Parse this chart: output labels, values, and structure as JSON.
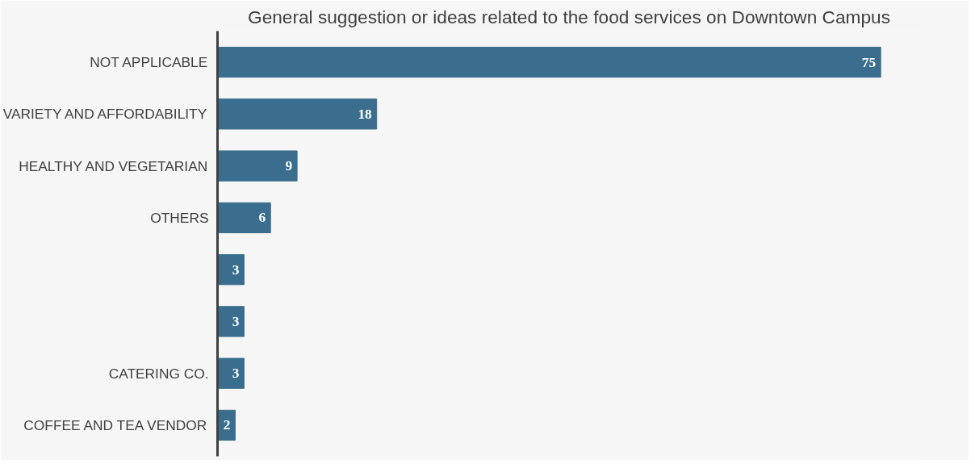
{
  "chart_data": {
    "type": "bar",
    "orientation": "horizontal",
    "title": "General suggestion or ideas related to the food services on Downtown Campus",
    "categories": [
      "NOT APPLICABLE",
      "VARIETY AND AFFORDABILITY",
      "HEALTHY AND VEGETARIAN",
      "OTHERS",
      null,
      null,
      "CATERING CO.",
      "COFFEE AND TEA VENDOR"
    ],
    "values": [
      75,
      18,
      9,
      6,
      3,
      3,
      3,
      2
    ],
    "color": "#3b6e8e",
    "data_labels": true,
    "grid": false,
    "tick_labels": "y"
  }
}
